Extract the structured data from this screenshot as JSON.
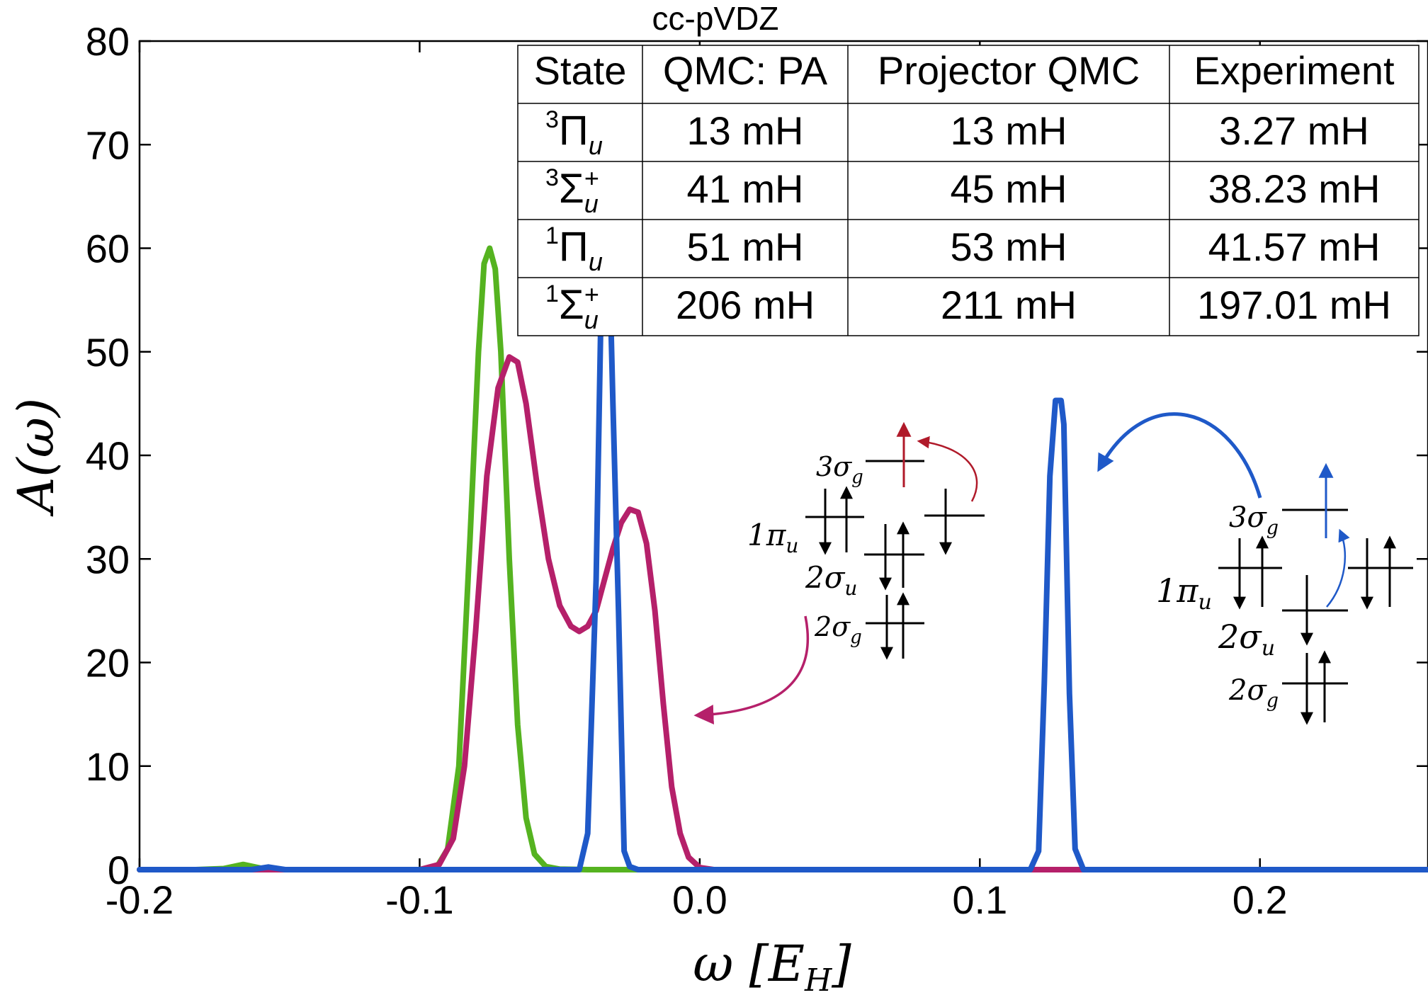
{
  "chart_data": {
    "type": "line",
    "title": "cc-pVDZ",
    "xlabel": "ω [E_H]",
    "ylabel": "A(ω)",
    "xlim": [
      -0.2,
      0.26
    ],
    "ylim": [
      0,
      80
    ],
    "xticks": [
      {
        "value": -0.2,
        "label": "-0.2"
      },
      {
        "value": -0.1,
        "label": "-0.1"
      },
      {
        "value": 0.0,
        "label": "0.0"
      },
      {
        "value": 0.1,
        "label": "0.1"
      },
      {
        "value": 0.2,
        "label": "0.2"
      }
    ],
    "yticks": [
      {
        "value": 0,
        "label": "0"
      },
      {
        "value": 10,
        "label": "10"
      },
      {
        "value": 20,
        "label": "20"
      },
      {
        "value": 30,
        "label": "30"
      },
      {
        "value": 40,
        "label": "40"
      },
      {
        "value": 50,
        "label": "50"
      },
      {
        "value": 60,
        "label": "60"
      },
      {
        "value": 70,
        "label": "70"
      },
      {
        "value": 80,
        "label": "80"
      }
    ],
    "grid": false,
    "series": [
      {
        "color": "#55b320",
        "x": [
          -0.2,
          -0.18,
          -0.17,
          -0.163,
          -0.156,
          -0.15,
          -0.1,
          -0.094,
          -0.09,
          -0.086,
          -0.082,
          -0.079,
          -0.077,
          -0.075,
          -0.073,
          -0.071,
          -0.068,
          -0.065,
          -0.062,
          -0.059,
          -0.055,
          -0.05,
          -0.04,
          0.26
        ],
        "y": [
          0,
          0,
          0.1,
          0.5,
          0.1,
          0,
          0,
          0.2,
          2.0,
          10.0,
          32.0,
          50.0,
          58.5,
          60.0,
          58.0,
          50.0,
          30.0,
          14.0,
          5.0,
          1.5,
          0.3,
          0.05,
          0,
          0
        ]
      },
      {
        "color": "#b5206a",
        "x": [
          -0.2,
          -0.1,
          -0.093,
          -0.088,
          -0.084,
          -0.08,
          -0.076,
          -0.072,
          -0.068,
          -0.065,
          -0.062,
          -0.058,
          -0.054,
          -0.05,
          -0.046,
          -0.043,
          -0.04,
          -0.037,
          -0.034,
          -0.031,
          -0.028,
          -0.025,
          -0.022,
          -0.019,
          -0.016,
          -0.013,
          -0.01,
          -0.007,
          -0.004,
          0.0,
          0.005,
          0.26
        ],
        "y": [
          0,
          0,
          0.5,
          3.0,
          10.0,
          23.0,
          38.0,
          46.5,
          49.5,
          49.0,
          45.0,
          37.0,
          30.0,
          25.5,
          23.5,
          23.0,
          23.5,
          25.0,
          28.0,
          31.0,
          33.5,
          34.8,
          34.5,
          31.5,
          25.0,
          16.0,
          8.0,
          3.5,
          1.2,
          0.2,
          0,
          0
        ]
      },
      {
        "color": "#1f59c8",
        "x": [
          -0.2,
          -0.16,
          -0.154,
          -0.148,
          -0.043,
          -0.04,
          -0.037,
          -0.035,
          -0.034,
          -0.033,
          -0.032,
          -0.031,
          -0.029,
          -0.027,
          -0.025,
          -0.022,
          0.118,
          0.121,
          0.123,
          0.125,
          0.127,
          0.128,
          0.129,
          0.13,
          0.132,
          0.134,
          0.137,
          0.26
        ],
        "y": [
          0,
          0,
          0.25,
          0,
          0,
          3.5,
          28.0,
          58.0,
          65.5,
          64.0,
          56.0,
          45.0,
          25.0,
          1.8,
          0.3,
          0,
          0,
          1.8,
          18.0,
          38.0,
          45.3,
          45.3,
          45.3,
          43.0,
          17.0,
          2.0,
          0,
          0
        ]
      }
    ],
    "inset_table": {
      "headers": [
        "State",
        "QMC: PA",
        "Projector QMC",
        "Experiment"
      ],
      "rows": [
        {
          "state_sup": "3",
          "state_base": "Π",
          "state_sub": "u",
          "state_plus": "",
          "qmc_pa": "13 mH",
          "projector": "13 mH",
          "experiment": "3.27 mH"
        },
        {
          "state_sup": "3",
          "state_base": "Σ",
          "state_sub": "u",
          "state_plus": "+",
          "qmc_pa": "41 mH",
          "projector": "45 mH",
          "experiment": "38.23 mH"
        },
        {
          "state_sup": "1",
          "state_base": "Π",
          "state_sub": "u",
          "state_plus": "",
          "qmc_pa": "51 mH",
          "projector": "53 mH",
          "experiment": "41.57 mH"
        },
        {
          "state_sup": "1",
          "state_base": "Σ",
          "state_sub": "u",
          "state_plus": "+",
          "qmc_pa": "206 mH",
          "projector": "211 mH",
          "experiment": "197.01 mH"
        }
      ]
    },
    "orbital_labels": {
      "three_sigma_g": {
        "num": "3",
        "sym": "σ",
        "sub": "g"
      },
      "one_pi_u": {
        "num": "1",
        "sym": "π",
        "sub": "u"
      },
      "two_sigma_u": {
        "num": "2",
        "sym": "σ",
        "sub": "u"
      },
      "two_sigma_g": {
        "num": "2",
        "sym": "σ",
        "sub": "g"
      }
    },
    "annotation_colors": {
      "red_arrow": "#b01a2a",
      "blue_arrow": "#1f59c8",
      "magenta_arrow": "#b5206a",
      "levels": "#000000"
    }
  }
}
